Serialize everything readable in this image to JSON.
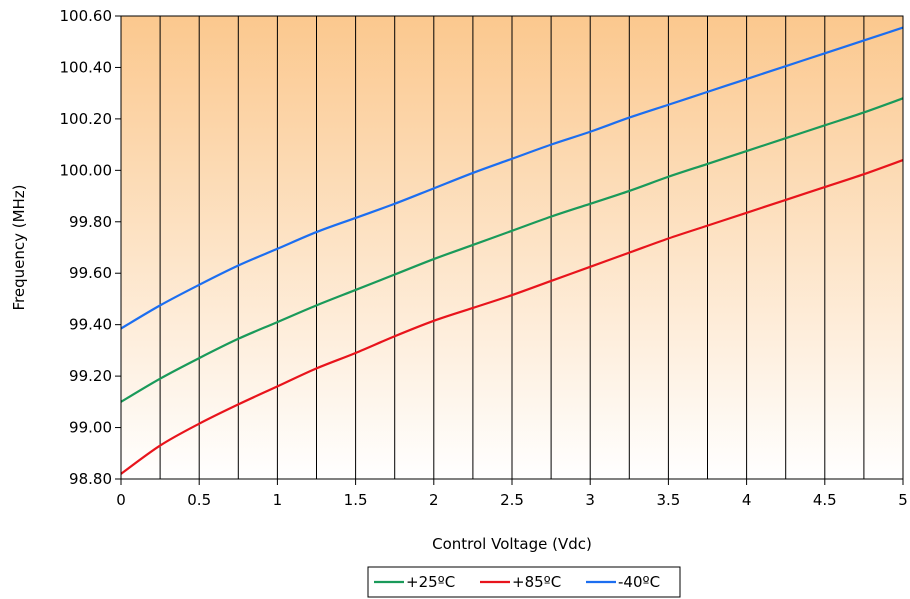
{
  "chart_data": {
    "type": "line",
    "title": "",
    "xlabel": "Control Voltage (Vdc)",
    "ylabel": "Frequency (MHz)",
    "xlim": [
      0,
      5
    ],
    "ylim": [
      98.8,
      100.6
    ],
    "x_ticks": [
      0,
      0.5,
      1,
      1.5,
      2,
      2.5,
      3,
      3.5,
      4,
      4.5,
      5
    ],
    "x_tick_labels": [
      "0",
      "0.5",
      "1",
      "1.5",
      "2",
      "2.5",
      "3",
      "3.5",
      "4",
      "4.5",
      "5"
    ],
    "y_ticks": [
      98.8,
      99.0,
      99.2,
      99.4,
      99.6,
      99.8,
      100.0,
      100.2,
      100.4,
      100.6
    ],
    "y_tick_labels": [
      "98.80",
      "99.00",
      "99.20",
      "99.40",
      "99.60",
      "99.80",
      "100.00",
      "100.20",
      "100.40",
      "100.60"
    ],
    "grid": "vertical lines every 0.25 V",
    "background": "gradient orange (top) to white (bottom)",
    "legend_position": "bottom-center",
    "x": [
      0,
      0.25,
      0.5,
      0.75,
      1,
      1.25,
      1.5,
      1.75,
      2,
      2.25,
      2.5,
      2.75,
      3,
      3.25,
      3.5,
      3.75,
      4,
      4.25,
      4.5,
      4.75,
      5
    ],
    "series": [
      {
        "name": "+25ºC",
        "color": "#1a9a5a",
        "values": [
          99.1,
          99.19,
          99.27,
          99.345,
          99.41,
          99.475,
          99.535,
          99.595,
          99.655,
          99.71,
          99.765,
          99.82,
          99.87,
          99.92,
          99.975,
          100.025,
          100.075,
          100.125,
          100.175,
          100.225,
          100.28
        ]
      },
      {
        "name": "+85ºC",
        "color": "#e8141c",
        "values": [
          98.82,
          98.93,
          99.015,
          99.09,
          99.16,
          99.23,
          99.29,
          99.355,
          99.415,
          99.465,
          99.515,
          99.57,
          99.625,
          99.68,
          99.735,
          99.785,
          99.835,
          99.885,
          99.935,
          99.985,
          100.04
        ]
      },
      {
        "name": "-40ºC",
        "color": "#1c6ef0",
        "values": [
          99.385,
          99.475,
          99.555,
          99.63,
          99.695,
          99.76,
          99.815,
          99.87,
          99.93,
          99.99,
          100.045,
          100.1,
          100.15,
          100.205,
          100.255,
          100.305,
          100.355,
          100.405,
          100.455,
          100.505,
          100.555
        ]
      }
    ]
  }
}
